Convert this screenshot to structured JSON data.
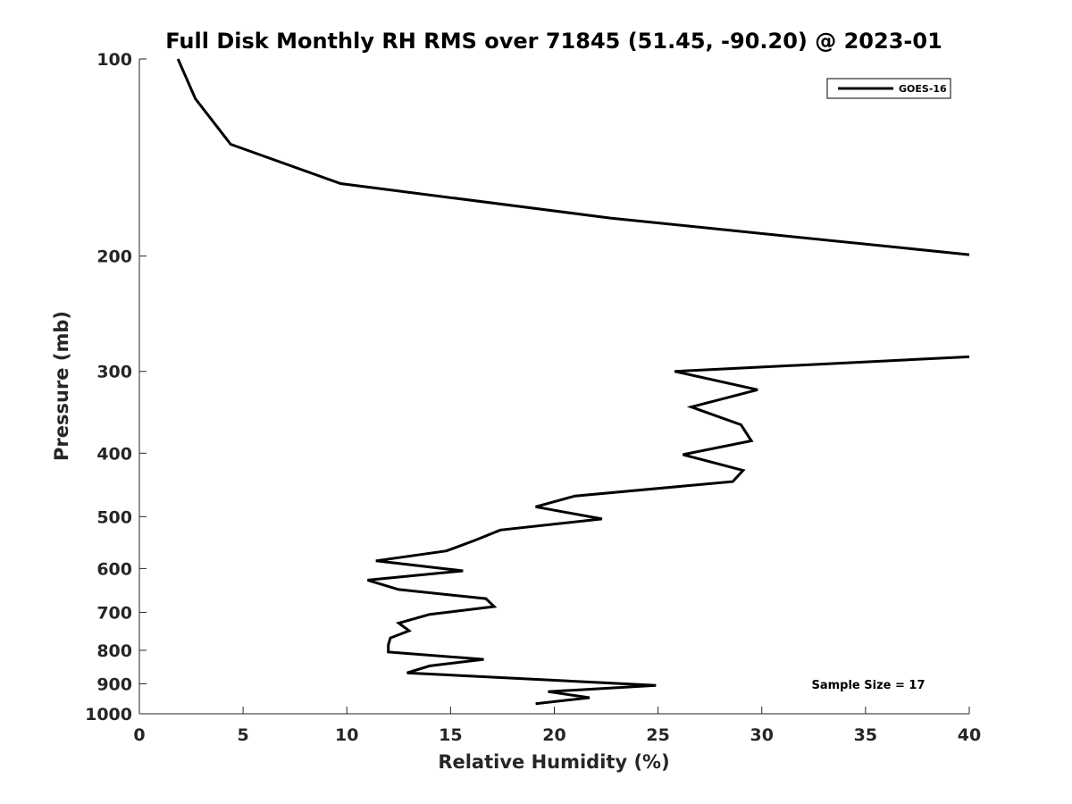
{
  "chart_data": {
    "type": "line",
    "title": "Full Disk Monthly RH RMS over 71845 (51.45, -90.20) @ 2023-01",
    "xlabel": "Relative Humidity (%)",
    "ylabel": "Pressure (mb)",
    "xlim": [
      0,
      40
    ],
    "ylim": [
      100,
      1000
    ],
    "yscale": "log",
    "y_reversed": true,
    "grid": false,
    "x_ticks": [
      "0",
      "5",
      "10",
      "15",
      "20",
      "25",
      "30",
      "35",
      "40"
    ],
    "y_ticks": [
      "100",
      "200",
      "300",
      "400",
      "500",
      "600",
      "700",
      "800",
      "900",
      "1000"
    ],
    "legend": {
      "position": "top-right",
      "entries": [
        "GOES-16"
      ]
    },
    "annotation": "Sample Size = 17",
    "series": [
      {
        "name": "GOES-16",
        "color": "#000000",
        "segments": [
          [
            {
              "x": 1.86,
              "y": 100
            },
            {
              "x": 2.7,
              "y": 115
            },
            {
              "x": 4.4,
              "y": 135
            },
            {
              "x": 9.7,
              "y": 155
            },
            {
              "x": 22.7,
              "y": 175
            },
            {
              "x": 40.0,
              "y": 199
            }
          ],
          [
            {
              "x": 40.0,
              "y": 285
            },
            {
              "x": 25.8,
              "y": 300
            },
            {
              "x": 29.8,
              "y": 320
            },
            {
              "x": 26.6,
              "y": 340
            },
            {
              "x": 29.0,
              "y": 362
            },
            {
              "x": 29.5,
              "y": 383
            },
            {
              "x": 26.2,
              "y": 402
            },
            {
              "x": 29.1,
              "y": 425
            },
            {
              "x": 28.6,
              "y": 442
            },
            {
              "x": 21.0,
              "y": 465
            },
            {
              "x": 19.1,
              "y": 483
            },
            {
              "x": 22.3,
              "y": 504
            },
            {
              "x": 17.4,
              "y": 524
            },
            {
              "x": 16.2,
              "y": 543
            },
            {
              "x": 14.8,
              "y": 564
            },
            {
              "x": 11.4,
              "y": 584
            },
            {
              "x": 15.6,
              "y": 605
            },
            {
              "x": 11.0,
              "y": 625
            },
            {
              "x": 12.5,
              "y": 646
            },
            {
              "x": 16.7,
              "y": 667
            },
            {
              "x": 17.1,
              "y": 686
            },
            {
              "x": 14.0,
              "y": 705
            },
            {
              "x": 12.5,
              "y": 727
            },
            {
              "x": 13.0,
              "y": 747
            },
            {
              "x": 12.1,
              "y": 766
            },
            {
              "x": 12.0,
              "y": 785
            },
            {
              "x": 12.0,
              "y": 805
            },
            {
              "x": 16.6,
              "y": 826
            },
            {
              "x": 14.0,
              "y": 845
            },
            {
              "x": 12.9,
              "y": 866
            },
            {
              "x": 24.9,
              "y": 905
            },
            {
              "x": 19.7,
              "y": 925
            },
            {
              "x": 21.7,
              "y": 945
            },
            {
              "x": 19.1,
              "y": 965
            }
          ]
        ]
      }
    ]
  }
}
